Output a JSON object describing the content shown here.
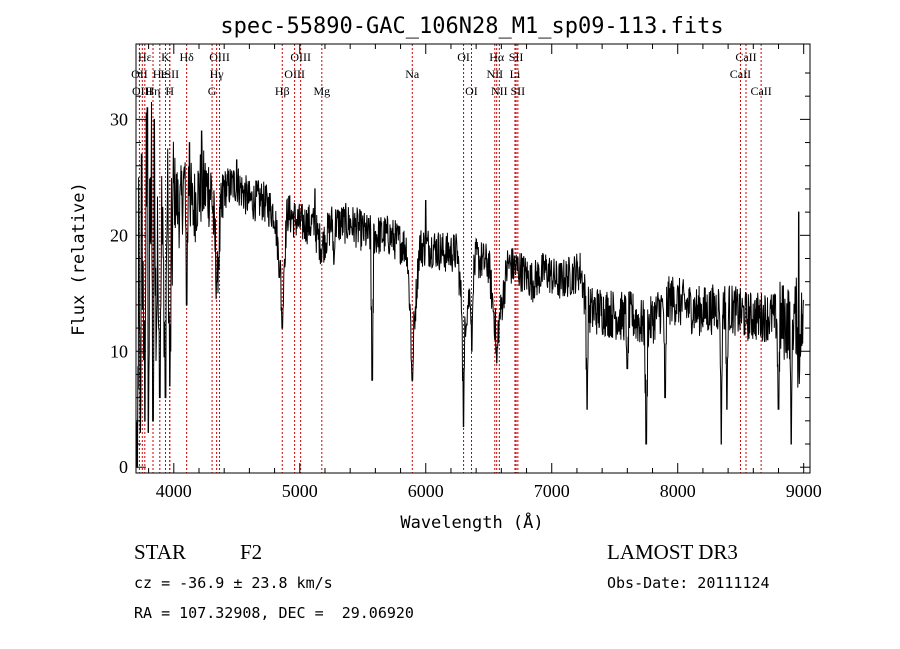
{
  "chart_data": {
    "type": "line",
    "title": "spec-55890-GAC_106N28_M1_sp09-113.fits",
    "xlabel": "Wavelength (Å)",
    "ylabel": "Flux (relative)",
    "xlim": [
      3700,
      9050
    ],
    "ylim": [
      -0.5,
      36.5
    ],
    "xticks": [
      4000,
      5000,
      6000,
      7000,
      8000,
      9000
    ],
    "yticks": [
      0,
      10,
      20,
      30
    ],
    "grid": false,
    "spectrum_anchors": [
      [
        3700,
        0.0
      ],
      [
        3720,
        20.0
      ],
      [
        3750,
        9.0
      ],
      [
        3780,
        26.0
      ],
      [
        3800,
        14.0
      ],
      [
        3830,
        30.0
      ],
      [
        3860,
        12.0
      ],
      [
        3890,
        26.0
      ],
      [
        3920,
        15.0
      ],
      [
        3940,
        27.0
      ],
      [
        3970,
        14.0
      ],
      [
        4000,
        24.0
      ],
      [
        4050,
        22.0
      ],
      [
        4100,
        26.0
      ],
      [
        4150,
        22.0
      ],
      [
        4200,
        24.0
      ],
      [
        4300,
        24.0
      ],
      [
        4340,
        17.0
      ],
      [
        4400,
        24.0
      ],
      [
        4500,
        24.5
      ],
      [
        4600,
        23.0
      ],
      [
        4700,
        23.0
      ],
      [
        4800,
        22.0
      ],
      [
        4861,
        15.0
      ],
      [
        4900,
        22.0
      ],
      [
        5000,
        21.0
      ],
      [
        5100,
        21.0
      ],
      [
        5175,
        19.0
      ],
      [
        5250,
        21.0
      ],
      [
        5400,
        21.0
      ],
      [
        5550,
        20.0
      ],
      [
        5700,
        20.0
      ],
      [
        5850,
        19.0
      ],
      [
        5893,
        10.0
      ],
      [
        5950,
        19.0
      ],
      [
        6050,
        19.0
      ],
      [
        6150,
        18.5
      ],
      [
        6250,
        18.5
      ],
      [
        6300,
        12.0
      ],
      [
        6400,
        18.0
      ],
      [
        6500,
        17.5
      ],
      [
        6563,
        11.0
      ],
      [
        6650,
        17.5
      ],
      [
        6750,
        17.0
      ],
      [
        6850,
        16.0
      ],
      [
        6950,
        17.0
      ],
      [
        7050,
        16.0
      ],
      [
        7150,
        16.5
      ],
      [
        7230,
        17.0
      ],
      [
        7280,
        13.5
      ],
      [
        7400,
        13.5
      ],
      [
        7550,
        13.0
      ],
      [
        7650,
        13.0
      ],
      [
        7750,
        12.0
      ],
      [
        7850,
        13.5
      ],
      [
        7950,
        14.5
      ],
      [
        8050,
        14.0
      ],
      [
        8150,
        13.5
      ],
      [
        8250,
        13.5
      ],
      [
        8350,
        14.0
      ],
      [
        8450,
        13.5
      ],
      [
        8550,
        13.0
      ],
      [
        8650,
        13.0
      ],
      [
        8750,
        13.0
      ],
      [
        8850,
        12.5
      ],
      [
        8950,
        13.0
      ],
      [
        9000,
        12.0
      ]
    ],
    "deep_dips": [
      [
        3710,
        0.0
      ],
      [
        3734,
        3.0
      ],
      [
        3770,
        4.0
      ],
      [
        3798,
        3.0
      ],
      [
        3835,
        4.0
      ],
      [
        3889,
        6.0
      ],
      [
        3934,
        6.0
      ],
      [
        3968,
        7.0
      ],
      [
        4102,
        14.0
      ],
      [
        4340,
        16.0
      ],
      [
        4861,
        12.0
      ],
      [
        5270,
        17.5
      ],
      [
        5575,
        7.5
      ],
      [
        5893,
        7.5
      ],
      [
        6300,
        3.5
      ],
      [
        6365,
        10.0
      ],
      [
        6563,
        9.0
      ],
      [
        7280,
        5.0
      ],
      [
        7600,
        8.5
      ],
      [
        7750,
        2.0
      ],
      [
        7900,
        6.0
      ],
      [
        8345,
        2.0
      ],
      [
        8390,
        5.0
      ],
      [
        8800,
        5.0
      ],
      [
        8900,
        2.0
      ],
      [
        8960,
        4.0
      ]
    ],
    "high_spikes": [
      [
        3745,
        27.0
      ],
      [
        3790,
        31.0
      ],
      [
        3845,
        30.0
      ],
      [
        4125,
        28.0
      ],
      [
        4220,
        29.0
      ],
      [
        4500,
        26.5
      ],
      [
        5120,
        24.0
      ],
      [
        6000,
        23.0
      ],
      [
        8960,
        22.0
      ]
    ],
    "spectral_lines": [
      {
        "name": "Hε",
        "wavelength": 3770,
        "row": 1
      },
      {
        "name": "OII",
        "wavelength": 3727,
        "row": 2
      },
      {
        "name": "OIII",
        "wavelength": 3750,
        "row": 3
      },
      {
        "name": "Hη",
        "wavelength": 3835,
        "row": 3
      },
      {
        "name": "K",
        "wavelength": 3934,
        "row": 1
      },
      {
        "name": "He",
        "wavelength": 3889,
        "row": 2
      },
      {
        "name": "ISII",
        "wavelength": 3968,
        "row": 2
      },
      {
        "name": "H",
        "wavelength": 3968,
        "row": 3
      },
      {
        "name": "Hδ",
        "wavelength": 4102,
        "row": 1
      },
      {
        "name": "OIII",
        "wavelength": 4363,
        "row": 1
      },
      {
        "name": "Hγ",
        "wavelength": 4340,
        "row": 2
      },
      {
        "name": "G",
        "wavelength": 4304,
        "row": 3
      },
      {
        "name": "Hβ",
        "wavelength": 4861,
        "row": 3
      },
      {
        "name": "OIII",
        "wavelength": 5007,
        "row": 1
      },
      {
        "name": "OIII",
        "wavelength": 4959,
        "row": 2
      },
      {
        "name": "Mg",
        "wavelength": 5175,
        "row": 3
      },
      {
        "name": "Na",
        "wavelength": 5893,
        "row": 2
      },
      {
        "name": "OI",
        "wavelength": 6300,
        "row": 1
      },
      {
        "name": "OI",
        "wavelength": 6363,
        "row": 3
      },
      {
        "name": "Hα",
        "wavelength": 6563,
        "row": 1
      },
      {
        "name": "SII",
        "wavelength": 6717,
        "row": 1
      },
      {
        "name": "NII",
        "wavelength": 6548,
        "row": 2
      },
      {
        "name": "Li",
        "wavelength": 6708,
        "row": 2
      },
      {
        "name": "NII",
        "wavelength": 6584,
        "row": 3
      },
      {
        "name": "SII",
        "wavelength": 6731,
        "row": 3
      },
      {
        "name": "CaII",
        "wavelength": 8542,
        "row": 1
      },
      {
        "name": "CaII",
        "wavelength": 8498,
        "row": 2
      },
      {
        "name": "CaII",
        "wavelength": 8662,
        "row": 3
      }
    ],
    "line_marker_color": "#cc0000",
    "spectrum_color": "#000000"
  },
  "info": {
    "class": "STAR",
    "subclass": "F2",
    "survey": "LAMOST DR3",
    "cz": "cz = -36.9 ± 23.8 km/s",
    "obs_date": "Obs-Date: 20111124",
    "radec": "RA = 107.32908, DEC =  29.06920"
  }
}
